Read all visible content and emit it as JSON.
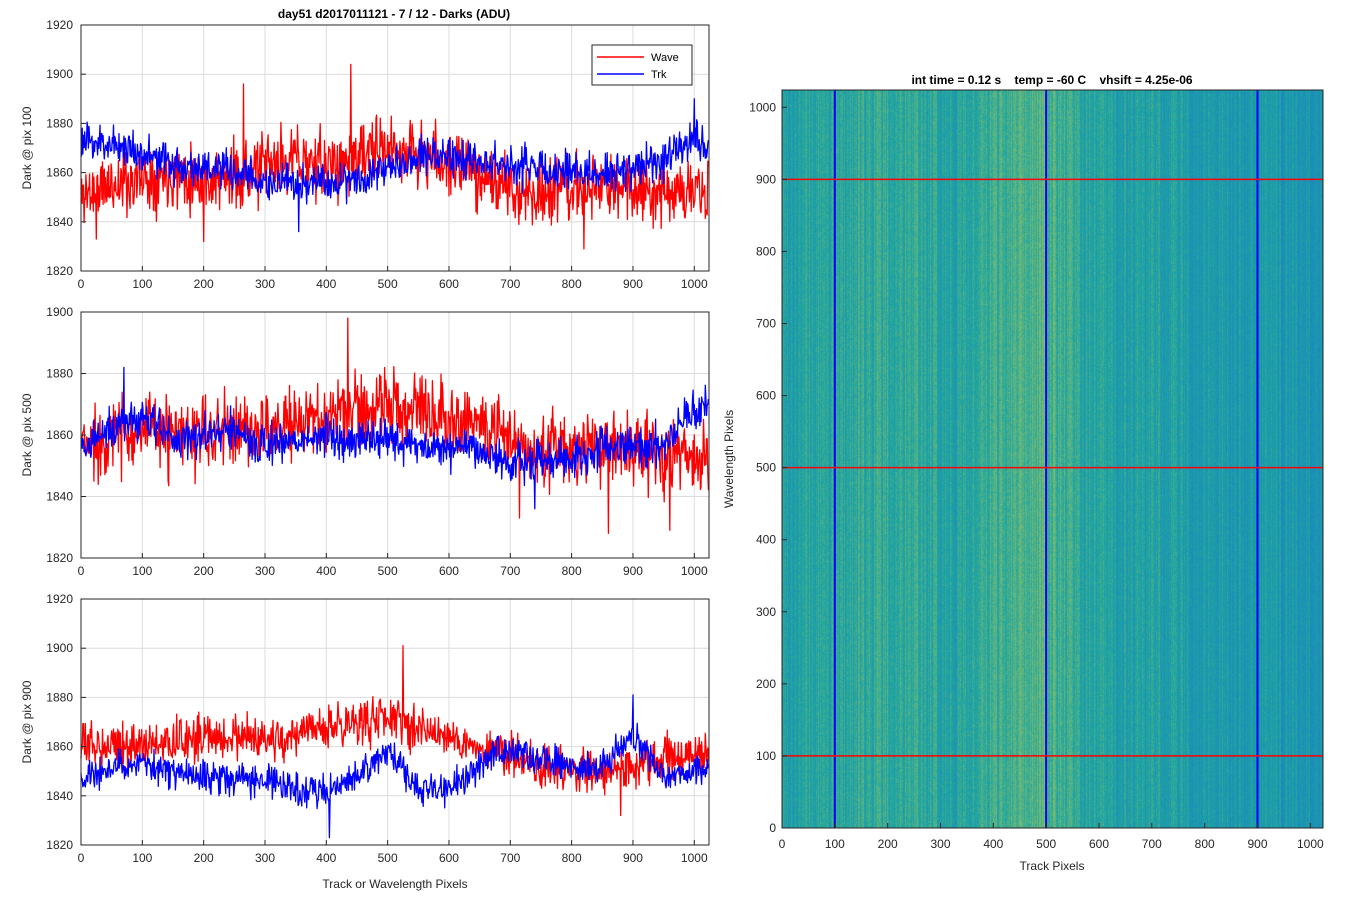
{
  "figure": {
    "title": "day51 d2017011121 - 7 / 12 - Darks (ADU)",
    "background": "#ffffff"
  },
  "colors": {
    "wave": "#ff0000",
    "trk": "#0000ff",
    "grid": "#dcdcdc",
    "axes": "#262626",
    "heatmap_low": "#1a7fc7",
    "heatmap_mid": "#1fa6a0",
    "heatmap_high": "#a9c65a"
  },
  "chart_data": [
    {
      "type": "line",
      "ylabel": "Dark @ pix 100",
      "xlabel": "",
      "xlim": [
        0,
        1024
      ],
      "ylim": [
        1820,
        1920
      ],
      "xticks": [
        0,
        100,
        200,
        300,
        400,
        500,
        600,
        700,
        800,
        900,
        1000
      ],
      "yticks": [
        1820,
        1840,
        1860,
        1880,
        1900,
        1920
      ],
      "grid": true,
      "legend": {
        "position": "top-right",
        "entries": [
          "Wave",
          "Trk"
        ]
      },
      "series": [
        {
          "name": "Wave",
          "color": "#ff0000",
          "x": [
            0,
            50,
            100,
            150,
            200,
            250,
            300,
            350,
            400,
            450,
            500,
            550,
            600,
            650,
            700,
            750,
            800,
            850,
            900,
            950,
            1000,
            1023
          ],
          "y": [
            1851,
            1855,
            1858,
            1860,
            1857,
            1858,
            1862,
            1866,
            1862,
            1866,
            1870,
            1868,
            1864,
            1860,
            1852,
            1852,
            1853,
            1854,
            1854,
            1853,
            1852,
            1851
          ],
          "noise": 12,
          "seed": 11,
          "spikes": [
            [
              25,
              1833
            ],
            [
              440,
              1904
            ],
            [
              265,
              1896
            ],
            [
              200,
              1832
            ],
            [
              820,
              1829
            ]
          ]
        },
        {
          "name": "Trk",
          "color": "#0000ff",
          "x": [
            0,
            50,
            100,
            150,
            200,
            250,
            300,
            350,
            400,
            450,
            500,
            550,
            600,
            650,
            700,
            750,
            800,
            850,
            900,
            950,
            1000,
            1023
          ],
          "y": [
            1872,
            1872,
            1868,
            1863,
            1862,
            1860,
            1856,
            1855,
            1856,
            1858,
            1862,
            1868,
            1866,
            1865,
            1863,
            1862,
            1860,
            1860,
            1861,
            1866,
            1873,
            1872
          ],
          "noise": 7,
          "seed": 23,
          "spikes": [
            [
              355,
              1836
            ],
            [
              1000,
              1890
            ]
          ]
        }
      ]
    },
    {
      "type": "line",
      "ylabel": "Dark @ pix 500",
      "xlabel": "",
      "xlim": [
        0,
        1024
      ],
      "ylim": [
        1820,
        1900
      ],
      "xticks": [
        0,
        100,
        200,
        300,
        400,
        500,
        600,
        700,
        800,
        900,
        1000
      ],
      "yticks": [
        1820,
        1840,
        1860,
        1880,
        1900
      ],
      "grid": true,
      "series": [
        {
          "name": "Wave",
          "color": "#ff0000",
          "x": [
            0,
            50,
            100,
            150,
            200,
            250,
            300,
            350,
            400,
            450,
            500,
            550,
            600,
            650,
            700,
            750,
            800,
            850,
            900,
            950,
            1000,
            1023
          ],
          "y": [
            1856,
            1860,
            1862,
            1859,
            1860,
            1862,
            1862,
            1863,
            1866,
            1868,
            1870,
            1869,
            1867,
            1864,
            1858,
            1856,
            1855,
            1856,
            1857,
            1853,
            1852,
            1851
          ],
          "noise": 11,
          "seed": 37,
          "spikes": [
            [
              435,
              1898
            ],
            [
              960,
              1829
            ],
            [
              715,
              1833
            ],
            [
              860,
              1828
            ]
          ]
        },
        {
          "name": "Trk",
          "color": "#0000ff",
          "x": [
            0,
            50,
            100,
            150,
            200,
            250,
            300,
            350,
            400,
            450,
            500,
            550,
            600,
            650,
            700,
            750,
            800,
            850,
            900,
            950,
            1000,
            1023
          ],
          "y": [
            1856,
            1862,
            1866,
            1858,
            1860,
            1861,
            1856,
            1858,
            1860,
            1858,
            1859,
            1856,
            1856,
            1856,
            1850,
            1853,
            1852,
            1856,
            1857,
            1856,
            1868,
            1872
          ],
          "noise": 6,
          "seed": 41,
          "spikes": [
            [
              70,
              1882
            ],
            [
              740,
              1836
            ]
          ]
        }
      ]
    },
    {
      "type": "line",
      "ylabel": "Dark @ pix 900",
      "xlabel": "Track or Wavelength Pixels",
      "xlim": [
        0,
        1024
      ],
      "ylim": [
        1820,
        1920
      ],
      "xticks": [
        0,
        100,
        200,
        300,
        400,
        500,
        600,
        700,
        800,
        900,
        1000
      ],
      "yticks": [
        1820,
        1840,
        1860,
        1880,
        1900,
        1920
      ],
      "grid": true,
      "series": [
        {
          "name": "Wave",
          "color": "#ff0000",
          "x": [
            0,
            50,
            100,
            150,
            200,
            250,
            300,
            350,
            400,
            450,
            500,
            550,
            600,
            650,
            700,
            750,
            800,
            850,
            900,
            950,
            1000,
            1023
          ],
          "y": [
            1860,
            1862,
            1860,
            1862,
            1864,
            1864,
            1862,
            1864,
            1868,
            1870,
            1872,
            1868,
            1864,
            1860,
            1856,
            1852,
            1850,
            1850,
            1852,
            1855,
            1856,
            1856
          ],
          "noise": 8,
          "seed": 53,
          "spikes": [
            [
              525,
              1901
            ],
            [
              880,
              1832
            ]
          ]
        },
        {
          "name": "Trk",
          "color": "#0000ff",
          "x": [
            0,
            50,
            100,
            150,
            200,
            250,
            300,
            350,
            400,
            450,
            500,
            550,
            600,
            650,
            700,
            750,
            800,
            850,
            900,
            950,
            1000,
            1023
          ],
          "y": [
            1846,
            1852,
            1852,
            1850,
            1848,
            1848,
            1846,
            1842,
            1842,
            1848,
            1858,
            1843,
            1842,
            1852,
            1860,
            1854,
            1852,
            1851,
            1865,
            1848,
            1850,
            1852
          ],
          "noise": 6,
          "seed": 67,
          "spikes": [
            [
              405,
              1823
            ],
            [
              900,
              1881
            ]
          ]
        }
      ]
    },
    {
      "type": "heatmap",
      "title": "int time = 0.12 s    temp = -60 C    vhsift = 4.25e-06",
      "xlabel": "Track Pixels",
      "ylabel": "Wavelength Pixels",
      "xlim": [
        0,
        1024
      ],
      "ylim": [
        0,
        1024
      ],
      "xticks": [
        0,
        100,
        200,
        300,
        400,
        500,
        600,
        700,
        800,
        900,
        1000
      ],
      "yticks": [
        0,
        100,
        200,
        300,
        400,
        500,
        600,
        700,
        800,
        900,
        1000
      ],
      "colormap": "parula",
      "vertical_lines": {
        "at": [
          100,
          500,
          900
        ],
        "color": "#0000ff"
      },
      "horizontal_lines": {
        "at": [
          100,
          500,
          900
        ],
        "color": "#ff0000"
      }
    }
  ]
}
